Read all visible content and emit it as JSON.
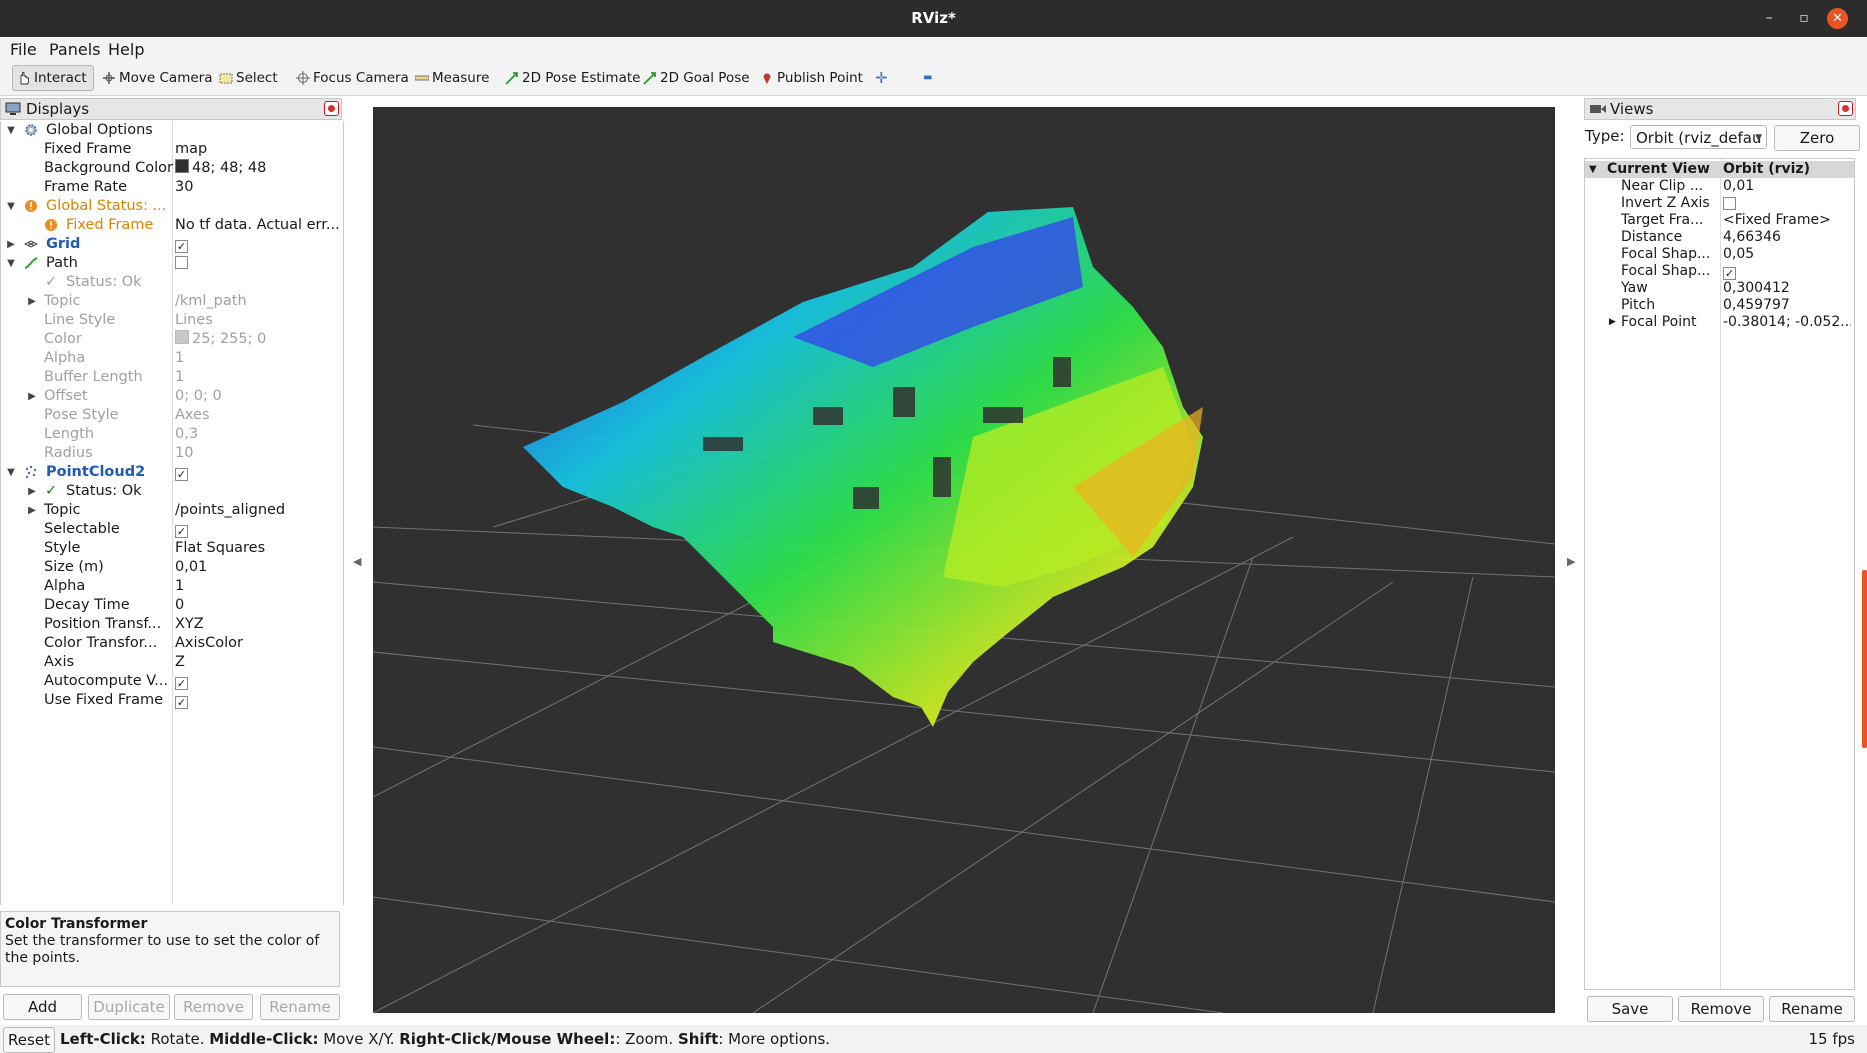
{
  "window": {
    "title": "RViz*",
    "minimize": "–",
    "maximize": "▫",
    "close": "✕"
  },
  "menu": [
    "File",
    "Panels",
    "Help"
  ],
  "toolbar": {
    "interact": "Interact",
    "move_camera": "Move Camera",
    "select": "Select",
    "focus_camera": "Focus Camera",
    "measure": "Measure",
    "pose_estimate": "2D Pose Estimate",
    "goal_pose": "2D Goal Pose",
    "publish_point": "Publish Point",
    "plus": "✛",
    "minus": "▬"
  },
  "displays": {
    "title": "Displays",
    "rows": [
      {
        "name": "Global Options",
        "value": ""
      },
      {
        "name": "Fixed Frame",
        "value": "map"
      },
      {
        "name": "Background Color",
        "value": "48; 48; 48"
      },
      {
        "name": "Frame Rate",
        "value": "30"
      },
      {
        "name": "Global Status: ...",
        "value": ""
      },
      {
        "name": "Fixed Frame",
        "value": "No tf data.  Actual err..."
      },
      {
        "name": "Grid",
        "value": ""
      },
      {
        "name": "Path",
        "value": ""
      },
      {
        "name": "Status: Ok",
        "value": ""
      },
      {
        "name": "Topic",
        "value": "/kml_path"
      },
      {
        "name": "Line Style",
        "value": "Lines"
      },
      {
        "name": "Color",
        "value": "25; 255; 0"
      },
      {
        "name": "Alpha",
        "value": "1"
      },
      {
        "name": "Buffer Length",
        "value": "1"
      },
      {
        "name": "Offset",
        "value": "0; 0; 0"
      },
      {
        "name": "Pose Style",
        "value": "Axes"
      },
      {
        "name": "Length",
        "value": "0,3"
      },
      {
        "name": "Radius",
        "value": "10"
      },
      {
        "name": "PointCloud2",
        "value": ""
      },
      {
        "name": "Status: Ok",
        "value": ""
      },
      {
        "name": "Topic",
        "value": "/points_aligned"
      },
      {
        "name": "Selectable",
        "value": ""
      },
      {
        "name": "Style",
        "value": "Flat Squares"
      },
      {
        "name": "Size (m)",
        "value": "0,01"
      },
      {
        "name": "Alpha",
        "value": "1"
      },
      {
        "name": "Decay Time",
        "value": "0"
      },
      {
        "name": "Position Transf...",
        "value": "XYZ"
      },
      {
        "name": "Color Transfor...",
        "value": "AxisColor"
      },
      {
        "name": "Axis",
        "value": "Z"
      },
      {
        "name": "Autocompute V...",
        "value": ""
      },
      {
        "name": "Use Fixed Frame",
        "value": ""
      }
    ],
    "description_title": "Color Transformer",
    "description_text": "Set the transformer to use to set the color of the points.",
    "buttons": {
      "add": "Add",
      "duplicate": "Duplicate",
      "remove": "Remove",
      "rename": "Rename"
    }
  },
  "colors": {
    "background_swatch": "#303030",
    "path_color_swatch": "#19ff00",
    "accent": "#e95420"
  },
  "views": {
    "title": "Views",
    "type_label": "Type:",
    "type_value": "Orbit (rviz_defau",
    "zero": "Zero",
    "header_name": "Current View",
    "header_value": "Orbit (rviz)",
    "rows": [
      {
        "name": "Near Clip ...",
        "value": "0,01"
      },
      {
        "name": "Invert Z Axis",
        "value": ""
      },
      {
        "name": "Target Fra...",
        "value": "<Fixed Frame>"
      },
      {
        "name": "Distance",
        "value": "4,66346"
      },
      {
        "name": "Focal Shap...",
        "value": "0,05"
      },
      {
        "name": "Focal Shap...",
        "value": ""
      },
      {
        "name": "Yaw",
        "value": "0,300412"
      },
      {
        "name": "Pitch",
        "value": "0,459797"
      },
      {
        "name": "Focal Point",
        "value": "-0.38014; -0.052..."
      }
    ],
    "buttons": {
      "save": "Save",
      "remove": "Remove",
      "rename": "Rename"
    }
  },
  "status": {
    "reset": "Reset",
    "hint_left_click": "Left-Click:",
    "hint_rotate": " Rotate. ",
    "hint_middle_click": "Middle-Click:",
    "hint_move": " Move X/Y. ",
    "hint_right_click": "Right-Click/Mouse Wheel:",
    "hint_zoom": ": Zoom. ",
    "hint_shift": "Shift",
    "hint_more": ": More options.",
    "fps": "15 fps"
  }
}
